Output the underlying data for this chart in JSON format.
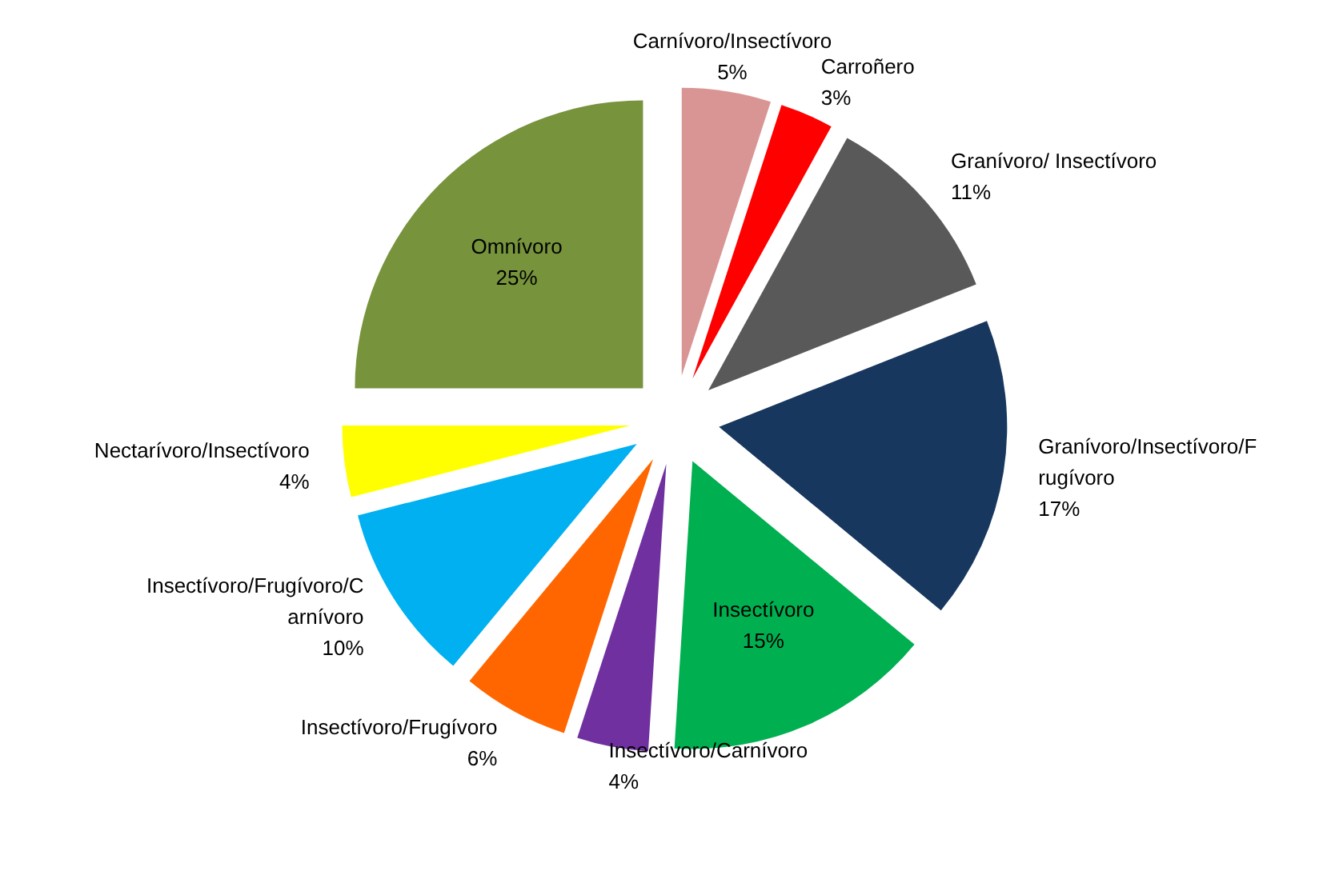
{
  "chart_data": {
    "type": "pie",
    "categories": [
      "Carnívoro/Insectívoro",
      "Carroñero",
      "Granívoro/ Insectívoro",
      "Granívoro/Insectívoro/Frugívoro",
      "Insectívoro",
      "Insectívoro/Carnívoro",
      "Insectívoro/Frugívoro",
      "Insectívoro/Frugívoro/Carnívoro",
      "Nectarívoro/Insectívoro",
      "Omnívoro"
    ],
    "values": [
      5,
      3,
      11,
      17,
      15,
      4,
      6,
      10,
      4,
      25
    ],
    "colors": [
      "#d99594",
      "#ff0000",
      "#595959",
      "#17375e",
      "#00b050",
      "#7030a0",
      "#ff6600",
      "#00b0f0",
      "#ffff00",
      "#77933c"
    ],
    "value_labels": [
      "5%",
      "3%",
      "11%",
      "17%",
      "15%",
      "4%",
      "6%",
      "10%",
      "4%",
      "25%"
    ]
  }
}
